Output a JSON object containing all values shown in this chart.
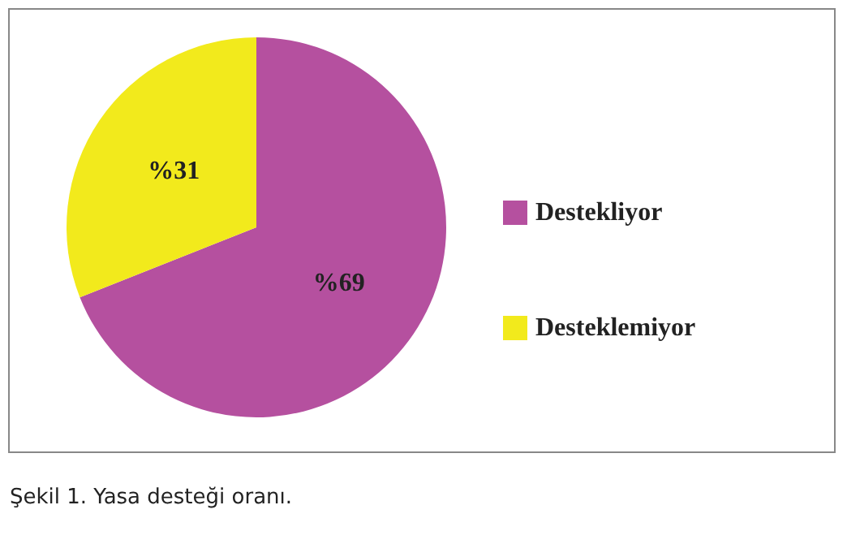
{
  "chart_data": {
    "type": "pie",
    "categories": [
      "Destekliyor",
      "Desteklemiyor"
    ],
    "values": [
      69,
      31
    ],
    "value_labels": [
      "%69",
      "%31"
    ],
    "colors": [
      "#b5509f",
      "#f2ea1c"
    ],
    "legend": "right",
    "annotations": [
      "Şekil 1. Yasa desteği oranı."
    ]
  }
}
